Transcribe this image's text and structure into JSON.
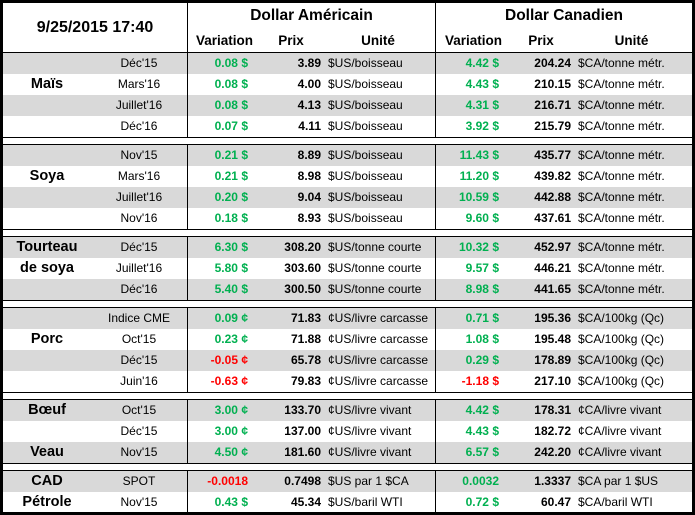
{
  "chart_data": {
    "type": "table",
    "header": {
      "datetime": "9/25/2015 17:40",
      "us_title": "Dollar Américain",
      "ca_title": "Dollar Canadien",
      "variation": "Variation",
      "prix": "Prix",
      "unite": "Unité"
    },
    "sections": [
      {
        "rows": [
          {
            "label": "",
            "month": "Déc'15",
            "us_var": "0.08 $",
            "us_dir": "pos",
            "us_prix": "3.89",
            "us_unit": "$US/boisseau",
            "ca_var": "4.42 $",
            "ca_dir": "pos",
            "ca_prix": "204.24",
            "ca_unit": "$CA/tonne métr."
          },
          {
            "label": "Maïs",
            "month": "Mars'16",
            "us_var": "0.08 $",
            "us_dir": "pos",
            "us_prix": "4.00",
            "us_unit": "$US/boisseau",
            "ca_var": "4.43 $",
            "ca_dir": "pos",
            "ca_prix": "210.15",
            "ca_unit": "$CA/tonne métr."
          },
          {
            "label": "",
            "month": "Juillet'16",
            "us_var": "0.08 $",
            "us_dir": "pos",
            "us_prix": "4.13",
            "us_unit": "$US/boisseau",
            "ca_var": "4.31 $",
            "ca_dir": "pos",
            "ca_prix": "216.71",
            "ca_unit": "$CA/tonne métr."
          },
          {
            "label": "",
            "month": "Déc'16",
            "us_var": "0.07 $",
            "us_dir": "pos",
            "us_prix": "4.11",
            "us_unit": "$US/boisseau",
            "ca_var": "3.92 $",
            "ca_dir": "pos",
            "ca_prix": "215.79",
            "ca_unit": "$CA/tonne métr."
          }
        ]
      },
      {
        "rows": [
          {
            "label": "",
            "month": "Nov'15",
            "us_var": "0.21 $",
            "us_dir": "pos",
            "us_prix": "8.89",
            "us_unit": "$US/boisseau",
            "ca_var": "11.43 $",
            "ca_dir": "pos",
            "ca_prix": "435.77",
            "ca_unit": "$CA/tonne métr."
          },
          {
            "label": "Soya",
            "month": "Mars'16",
            "us_var": "0.21 $",
            "us_dir": "pos",
            "us_prix": "8.98",
            "us_unit": "$US/boisseau",
            "ca_var": "11.20 $",
            "ca_dir": "pos",
            "ca_prix": "439.82",
            "ca_unit": "$CA/tonne métr."
          },
          {
            "label": "",
            "month": "Juillet'16",
            "us_var": "0.20 $",
            "us_dir": "pos",
            "us_prix": "9.04",
            "us_unit": "$US/boisseau",
            "ca_var": "10.59 $",
            "ca_dir": "pos",
            "ca_prix": "442.88",
            "ca_unit": "$CA/tonne métr."
          },
          {
            "label": "",
            "month": "Nov'16",
            "us_var": "0.18 $",
            "us_dir": "pos",
            "us_prix": "8.93",
            "us_unit": "$US/boisseau",
            "ca_var": "9.60 $",
            "ca_dir": "pos",
            "ca_prix": "437.61",
            "ca_unit": "$CA/tonne métr."
          }
        ]
      },
      {
        "rows": [
          {
            "label": "Tourteau",
            "month": "Déc'15",
            "us_var": "6.30 $",
            "us_dir": "pos",
            "us_prix": "308.20",
            "us_unit": "$US/tonne courte",
            "ca_var": "10.32 $",
            "ca_dir": "pos",
            "ca_prix": "452.97",
            "ca_unit": "$CA/tonne métr."
          },
          {
            "label": "de soya",
            "month": "Juillet'16",
            "us_var": "5.80 $",
            "us_dir": "pos",
            "us_prix": "303.60",
            "us_unit": "$US/tonne courte",
            "ca_var": "9.57 $",
            "ca_dir": "pos",
            "ca_prix": "446.21",
            "ca_unit": "$CA/tonne métr."
          },
          {
            "label": "",
            "month": "Déc'16",
            "us_var": "5.40 $",
            "us_dir": "pos",
            "us_prix": "300.50",
            "us_unit": "$US/tonne courte",
            "ca_var": "8.98 $",
            "ca_dir": "pos",
            "ca_prix": "441.65",
            "ca_unit": "$CA/tonne métr."
          }
        ]
      },
      {
        "rows": [
          {
            "label": "",
            "month": "Indice CME",
            "us_var": "0.09 ¢",
            "us_dir": "pos",
            "us_prix": "71.83",
            "us_unit": "¢US/livre carcasse",
            "ca_var": "0.71 $",
            "ca_dir": "pos",
            "ca_prix": "195.36",
            "ca_unit": "$CA/100kg (Qc)"
          },
          {
            "label": "Porc",
            "month": "Oct'15",
            "us_var": "0.23 ¢",
            "us_dir": "pos",
            "us_prix": "71.88",
            "us_unit": "¢US/livre carcasse",
            "ca_var": "1.08 $",
            "ca_dir": "pos",
            "ca_prix": "195.48",
            "ca_unit": "$CA/100kg (Qc)"
          },
          {
            "label": "",
            "month": "Déc'15",
            "us_var": "-0.05 ¢",
            "us_dir": "neg",
            "us_prix": "65.78",
            "us_unit": "¢US/livre carcasse",
            "ca_var": "0.29 $",
            "ca_dir": "pos",
            "ca_prix": "178.89",
            "ca_unit": "$CA/100kg (Qc)"
          },
          {
            "label": "",
            "month": "Juin'16",
            "us_var": "-0.63 ¢",
            "us_dir": "neg",
            "us_prix": "79.83",
            "us_unit": "¢US/livre carcasse",
            "ca_var": "-1.18 $",
            "ca_dir": "neg",
            "ca_prix": "217.10",
            "ca_unit": "$CA/100kg (Qc)"
          }
        ]
      },
      {
        "rows": [
          {
            "label": "Bœuf",
            "month": "Oct'15",
            "us_var": "3.00 ¢",
            "us_dir": "pos",
            "us_prix": "133.70",
            "us_unit": "¢US/livre vivant",
            "ca_var": "4.42 $",
            "ca_dir": "pos",
            "ca_prix": "178.31",
            "ca_unit": "¢CA/livre vivant"
          },
          {
            "label": "",
            "month": "Déc'15",
            "us_var": "3.00 ¢",
            "us_dir": "pos",
            "us_prix": "137.00",
            "us_unit": "¢US/livre vivant",
            "ca_var": "4.43 $",
            "ca_dir": "pos",
            "ca_prix": "182.72",
            "ca_unit": "¢CA/livre vivant"
          },
          {
            "label": "Veau",
            "month": "Nov'15",
            "us_var": "4.50 ¢",
            "us_dir": "pos",
            "us_prix": "181.60",
            "us_unit": "¢US/livre vivant",
            "ca_var": "6.57 $",
            "ca_dir": "pos",
            "ca_prix": "242.20",
            "ca_unit": "¢CA/livre vivant"
          }
        ]
      },
      {
        "rows": [
          {
            "label": "CAD",
            "month": "SPOT",
            "us_var": "-0.0018",
            "us_dir": "neg",
            "us_prix": "0.7498",
            "us_unit": "$US par 1 $CA",
            "ca_var": "0.0032",
            "ca_dir": "pos",
            "ca_prix": "1.3337",
            "ca_unit": "$CA par 1 $US"
          },
          {
            "label": "Pétrole",
            "month": "Nov'15",
            "us_var": "0.43 $",
            "us_dir": "pos",
            "us_prix": "45.34",
            "us_unit": "$US/baril WTI",
            "ca_var": "0.72 $",
            "ca_dir": "pos",
            "ca_prix": "60.47",
            "ca_unit": "$CA/baril WTI"
          }
        ]
      }
    ]
  },
  "colors": {
    "positive": "#00B050",
    "negative": "#FF0000",
    "row_stripe": "#D9D9D9",
    "border": "#000000"
  }
}
